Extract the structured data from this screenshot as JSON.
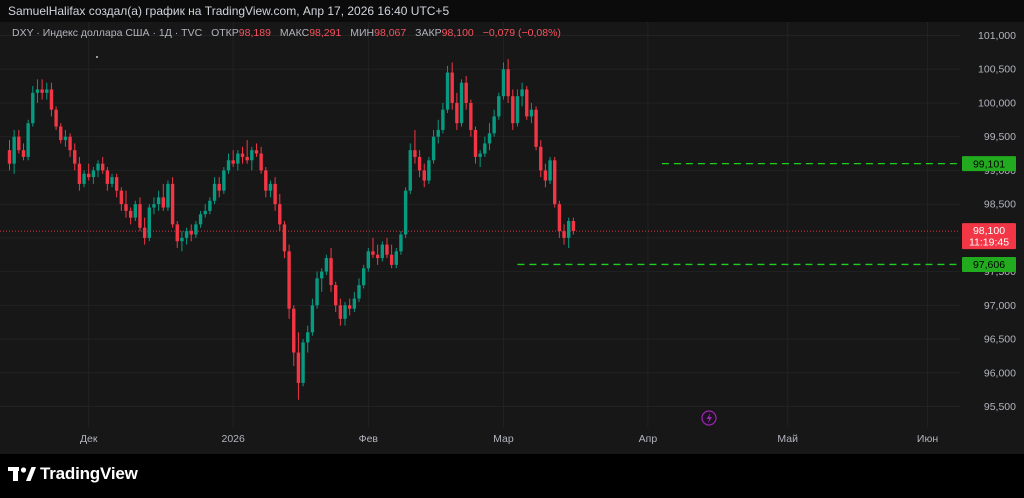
{
  "header": {
    "text": "SamuelHalifax создал(а) график на TradingView.com, Апр 17, 2026 16:40 UTC+5"
  },
  "legend": {
    "symbol": "DXY · Индекс доллара США · 1Д · TVC",
    "open_label": "ОТКР",
    "open_value": "98,189",
    "high_label": "МАКС",
    "high_value": "98,291",
    "low_label": "МИН",
    "low_value": "98,067",
    "close_label": "ЗАКР",
    "close_value": "98,100",
    "change_value": "−0,079 (−0,08%)"
  },
  "brand": {
    "name": "TradingView",
    "logo_icon": "tradingview-logo-icon"
  },
  "colors": {
    "up": "#089981",
    "down": "#f23645",
    "panel": "#171717",
    "grid": "#222222",
    "axis_text": "#b2b5be",
    "level_line": "#1fd11f",
    "level_label_bg": "#22ab1e",
    "price_label_bg": "#f23645",
    "lightning_icon": "#9c27b0"
  },
  "chart_data": {
    "type": "candlestick",
    "ylim": [
      95.3,
      101.2
    ],
    "yticks": [
      {
        "value": 95.5,
        "label": "95,500"
      },
      {
        "value": 96.0,
        "label": "96,000"
      },
      {
        "value": 96.5,
        "label": "96,500"
      },
      {
        "value": 97.0,
        "label": "97,000"
      },
      {
        "value": 97.5,
        "label": "97,500"
      },
      {
        "value": 98.0,
        "label": "98,000"
      },
      {
        "value": 98.5,
        "label": "98,500"
      },
      {
        "value": 99.0,
        "label": "99,000"
      },
      {
        "value": 99.5,
        "label": "99,500"
      },
      {
        "value": 100.0,
        "label": "100,000"
      },
      {
        "value": 100.5,
        "label": "100,500"
      },
      {
        "value": 101.0,
        "label": "101,000"
      }
    ],
    "xticks": [
      {
        "index": 17,
        "label": "Дек"
      },
      {
        "index": 48,
        "label": "2026"
      },
      {
        "index": 77,
        "label": "Фев"
      },
      {
        "index": 106,
        "label": "Мар"
      },
      {
        "index": 137,
        "label": "Апр"
      },
      {
        "index": 167,
        "label": "Май"
      },
      {
        "index": 197,
        "label": "Июн"
      }
    ],
    "candles": [
      [
        99.3,
        99.45,
        99.0,
        99.1
      ],
      [
        99.1,
        99.6,
        98.95,
        99.5
      ],
      [
        99.5,
        99.6,
        99.25,
        99.3
      ],
      [
        99.3,
        99.4,
        99.15,
        99.2
      ],
      [
        99.2,
        99.75,
        99.15,
        99.7
      ],
      [
        99.7,
        100.25,
        99.65,
        100.15
      ],
      [
        100.15,
        100.35,
        100.0,
        100.2
      ],
      [
        100.2,
        100.35,
        100.05,
        100.15
      ],
      [
        100.15,
        100.3,
        100.05,
        100.2
      ],
      [
        100.2,
        100.3,
        99.8,
        99.9
      ],
      [
        99.9,
        99.95,
        99.6,
        99.65
      ],
      [
        99.65,
        99.7,
        99.4,
        99.45
      ],
      [
        99.45,
        99.6,
        99.35,
        99.5
      ],
      [
        99.5,
        99.55,
        99.2,
        99.3
      ],
      [
        99.3,
        99.4,
        99.0,
        99.1
      ],
      [
        99.1,
        99.2,
        98.7,
        98.8
      ],
      [
        98.8,
        99.0,
        98.75,
        98.95
      ],
      [
        98.95,
        99.1,
        98.85,
        98.9
      ],
      [
        98.9,
        99.05,
        98.8,
        99.0
      ],
      [
        99.0,
        99.15,
        98.9,
        99.1
      ],
      [
        99.1,
        99.2,
        98.95,
        99.0
      ],
      [
        99.0,
        99.05,
        98.7,
        98.8
      ],
      [
        98.8,
        98.95,
        98.75,
        98.9
      ],
      [
        98.9,
        98.95,
        98.6,
        98.7
      ],
      [
        98.7,
        98.75,
        98.4,
        98.5
      ],
      [
        98.5,
        98.7,
        98.3,
        98.4
      ],
      [
        98.4,
        98.45,
        98.2,
        98.3
      ],
      [
        98.3,
        98.55,
        98.25,
        98.5
      ],
      [
        98.5,
        98.6,
        98.1,
        98.15
      ],
      [
        98.15,
        98.3,
        97.9,
        98.0
      ],
      [
        98.0,
        98.5,
        97.95,
        98.45
      ],
      [
        98.45,
        98.6,
        98.35,
        98.5
      ],
      [
        98.5,
        98.7,
        98.4,
        98.6
      ],
      [
        98.6,
        98.8,
        98.4,
        98.45
      ],
      [
        98.45,
        98.85,
        98.4,
        98.8
      ],
      [
        98.8,
        98.9,
        98.15,
        98.2
      ],
      [
        98.2,
        98.25,
        97.85,
        97.95
      ],
      [
        97.95,
        98.1,
        97.8,
        98.0
      ],
      [
        98.0,
        98.15,
        97.9,
        98.1
      ],
      [
        98.1,
        98.2,
        97.95,
        98.05
      ],
      [
        98.05,
        98.25,
        98.0,
        98.2
      ],
      [
        98.2,
        98.4,
        98.15,
        98.35
      ],
      [
        98.35,
        98.5,
        98.3,
        98.4
      ],
      [
        98.4,
        98.6,
        98.35,
        98.55
      ],
      [
        98.55,
        98.9,
        98.5,
        98.8
      ],
      [
        98.8,
        98.9,
        98.6,
        98.7
      ],
      [
        98.7,
        99.05,
        98.65,
        99.0
      ],
      [
        99.0,
        99.25,
        98.95,
        99.15
      ],
      [
        99.15,
        99.3,
        99.05,
        99.1
      ],
      [
        99.1,
        99.3,
        99.0,
        99.25
      ],
      [
        99.25,
        99.35,
        99.1,
        99.2
      ],
      [
        99.2,
        99.45,
        99.1,
        99.15
      ],
      [
        99.15,
        99.35,
        99.0,
        99.3
      ],
      [
        99.3,
        99.4,
        99.2,
        99.25
      ],
      [
        99.25,
        99.35,
        98.95,
        99.0
      ],
      [
        99.0,
        99.05,
        98.6,
        98.7
      ],
      [
        98.7,
        98.85,
        98.6,
        98.8
      ],
      [
        98.8,
        98.9,
        98.4,
        98.5
      ],
      [
        98.5,
        98.65,
        98.1,
        98.2
      ],
      [
        98.2,
        98.25,
        97.7,
        97.8
      ],
      [
        97.8,
        97.9,
        96.8,
        96.95
      ],
      [
        96.95,
        97.0,
        96.1,
        96.3
      ],
      [
        96.3,
        96.6,
        95.6,
        95.85
      ],
      [
        95.85,
        96.5,
        95.8,
        96.45
      ],
      [
        96.45,
        96.7,
        96.3,
        96.6
      ],
      [
        96.6,
        97.1,
        96.55,
        97.0
      ],
      [
        97.0,
        97.5,
        96.95,
        97.4
      ],
      [
        97.4,
        97.55,
        97.2,
        97.5
      ],
      [
        97.5,
        97.75,
        97.45,
        97.7
      ],
      [
        97.7,
        97.85,
        97.2,
        97.3
      ],
      [
        97.3,
        97.35,
        96.9,
        97.0
      ],
      [
        97.0,
        97.1,
        96.7,
        96.8
      ],
      [
        96.8,
        97.05,
        96.7,
        97.0
      ],
      [
        97.0,
        97.1,
        96.85,
        96.95
      ],
      [
        96.95,
        97.2,
        96.9,
        97.1
      ],
      [
        97.1,
        97.4,
        97.05,
        97.3
      ],
      [
        97.3,
        97.6,
        97.25,
        97.55
      ],
      [
        97.55,
        97.85,
        97.5,
        97.8
      ],
      [
        97.8,
        98.0,
        97.7,
        97.75
      ],
      [
        97.75,
        97.9,
        97.6,
        97.7
      ],
      [
        97.7,
        97.95,
        97.65,
        97.9
      ],
      [
        97.9,
        98.0,
        97.7,
        97.75
      ],
      [
        97.75,
        97.9,
        97.55,
        97.6
      ],
      [
        97.6,
        97.85,
        97.55,
        97.8
      ],
      [
        97.8,
        98.1,
        97.75,
        98.05
      ],
      [
        98.05,
        98.75,
        98.0,
        98.7
      ],
      [
        98.7,
        99.4,
        98.65,
        99.3
      ],
      [
        99.3,
        99.6,
        99.1,
        99.2
      ],
      [
        99.2,
        99.3,
        98.9,
        99.0
      ],
      [
        99.0,
        99.1,
        98.75,
        98.85
      ],
      [
        98.85,
        99.2,
        98.8,
        99.15
      ],
      [
        99.15,
        99.6,
        99.1,
        99.5
      ],
      [
        99.5,
        99.75,
        99.4,
        99.6
      ],
      [
        99.6,
        100.0,
        99.55,
        99.9
      ],
      [
        99.9,
        100.55,
        99.85,
        100.45
      ],
      [
        100.45,
        100.6,
        99.9,
        100.0
      ],
      [
        100.0,
        100.15,
        99.6,
        99.7
      ],
      [
        99.7,
        100.35,
        99.65,
        100.3
      ],
      [
        100.3,
        100.4,
        99.9,
        100.0
      ],
      [
        100.0,
        100.05,
        99.5,
        99.6
      ],
      [
        99.6,
        99.65,
        99.1,
        99.2
      ],
      [
        99.2,
        99.3,
        99.05,
        99.25
      ],
      [
        99.25,
        99.5,
        99.2,
        99.4
      ],
      [
        99.4,
        99.7,
        99.3,
        99.55
      ],
      [
        99.55,
        99.9,
        99.5,
        99.8
      ],
      [
        99.8,
        100.15,
        99.75,
        100.1
      ],
      [
        100.1,
        100.6,
        100.05,
        100.5
      ],
      [
        100.5,
        100.65,
        100.0,
        100.1
      ],
      [
        100.1,
        100.2,
        99.6,
        99.7
      ],
      [
        99.7,
        100.2,
        99.65,
        100.1
      ],
      [
        100.1,
        100.3,
        99.95,
        100.2
      ],
      [
        100.2,
        100.25,
        99.75,
        99.8
      ],
      [
        99.8,
        100.0,
        99.7,
        99.9
      ],
      [
        99.9,
        99.95,
        99.3,
        99.35
      ],
      [
        99.35,
        99.45,
        98.9,
        99.0
      ],
      [
        99.0,
        99.1,
        98.75,
        98.85
      ],
      [
        98.85,
        99.2,
        98.8,
        99.15
      ],
      [
        99.15,
        99.2,
        98.45,
        98.5
      ],
      [
        98.5,
        98.55,
        98.0,
        98.1
      ],
      [
        98.1,
        98.2,
        97.9,
        98.0
      ],
      [
        98.0,
        98.3,
        97.85,
        98.25
      ],
      [
        98.25,
        98.3,
        98.05,
        98.1
      ]
    ],
    "levels": [
      {
        "value": 99.101,
        "label": "99,101",
        "start_index": 140
      },
      {
        "value": 97.606,
        "label": "97,606",
        "start_index": 109
      }
    ],
    "current_price": {
      "value": 98.1,
      "label": "98,100",
      "countdown": "11:19:45"
    }
  }
}
